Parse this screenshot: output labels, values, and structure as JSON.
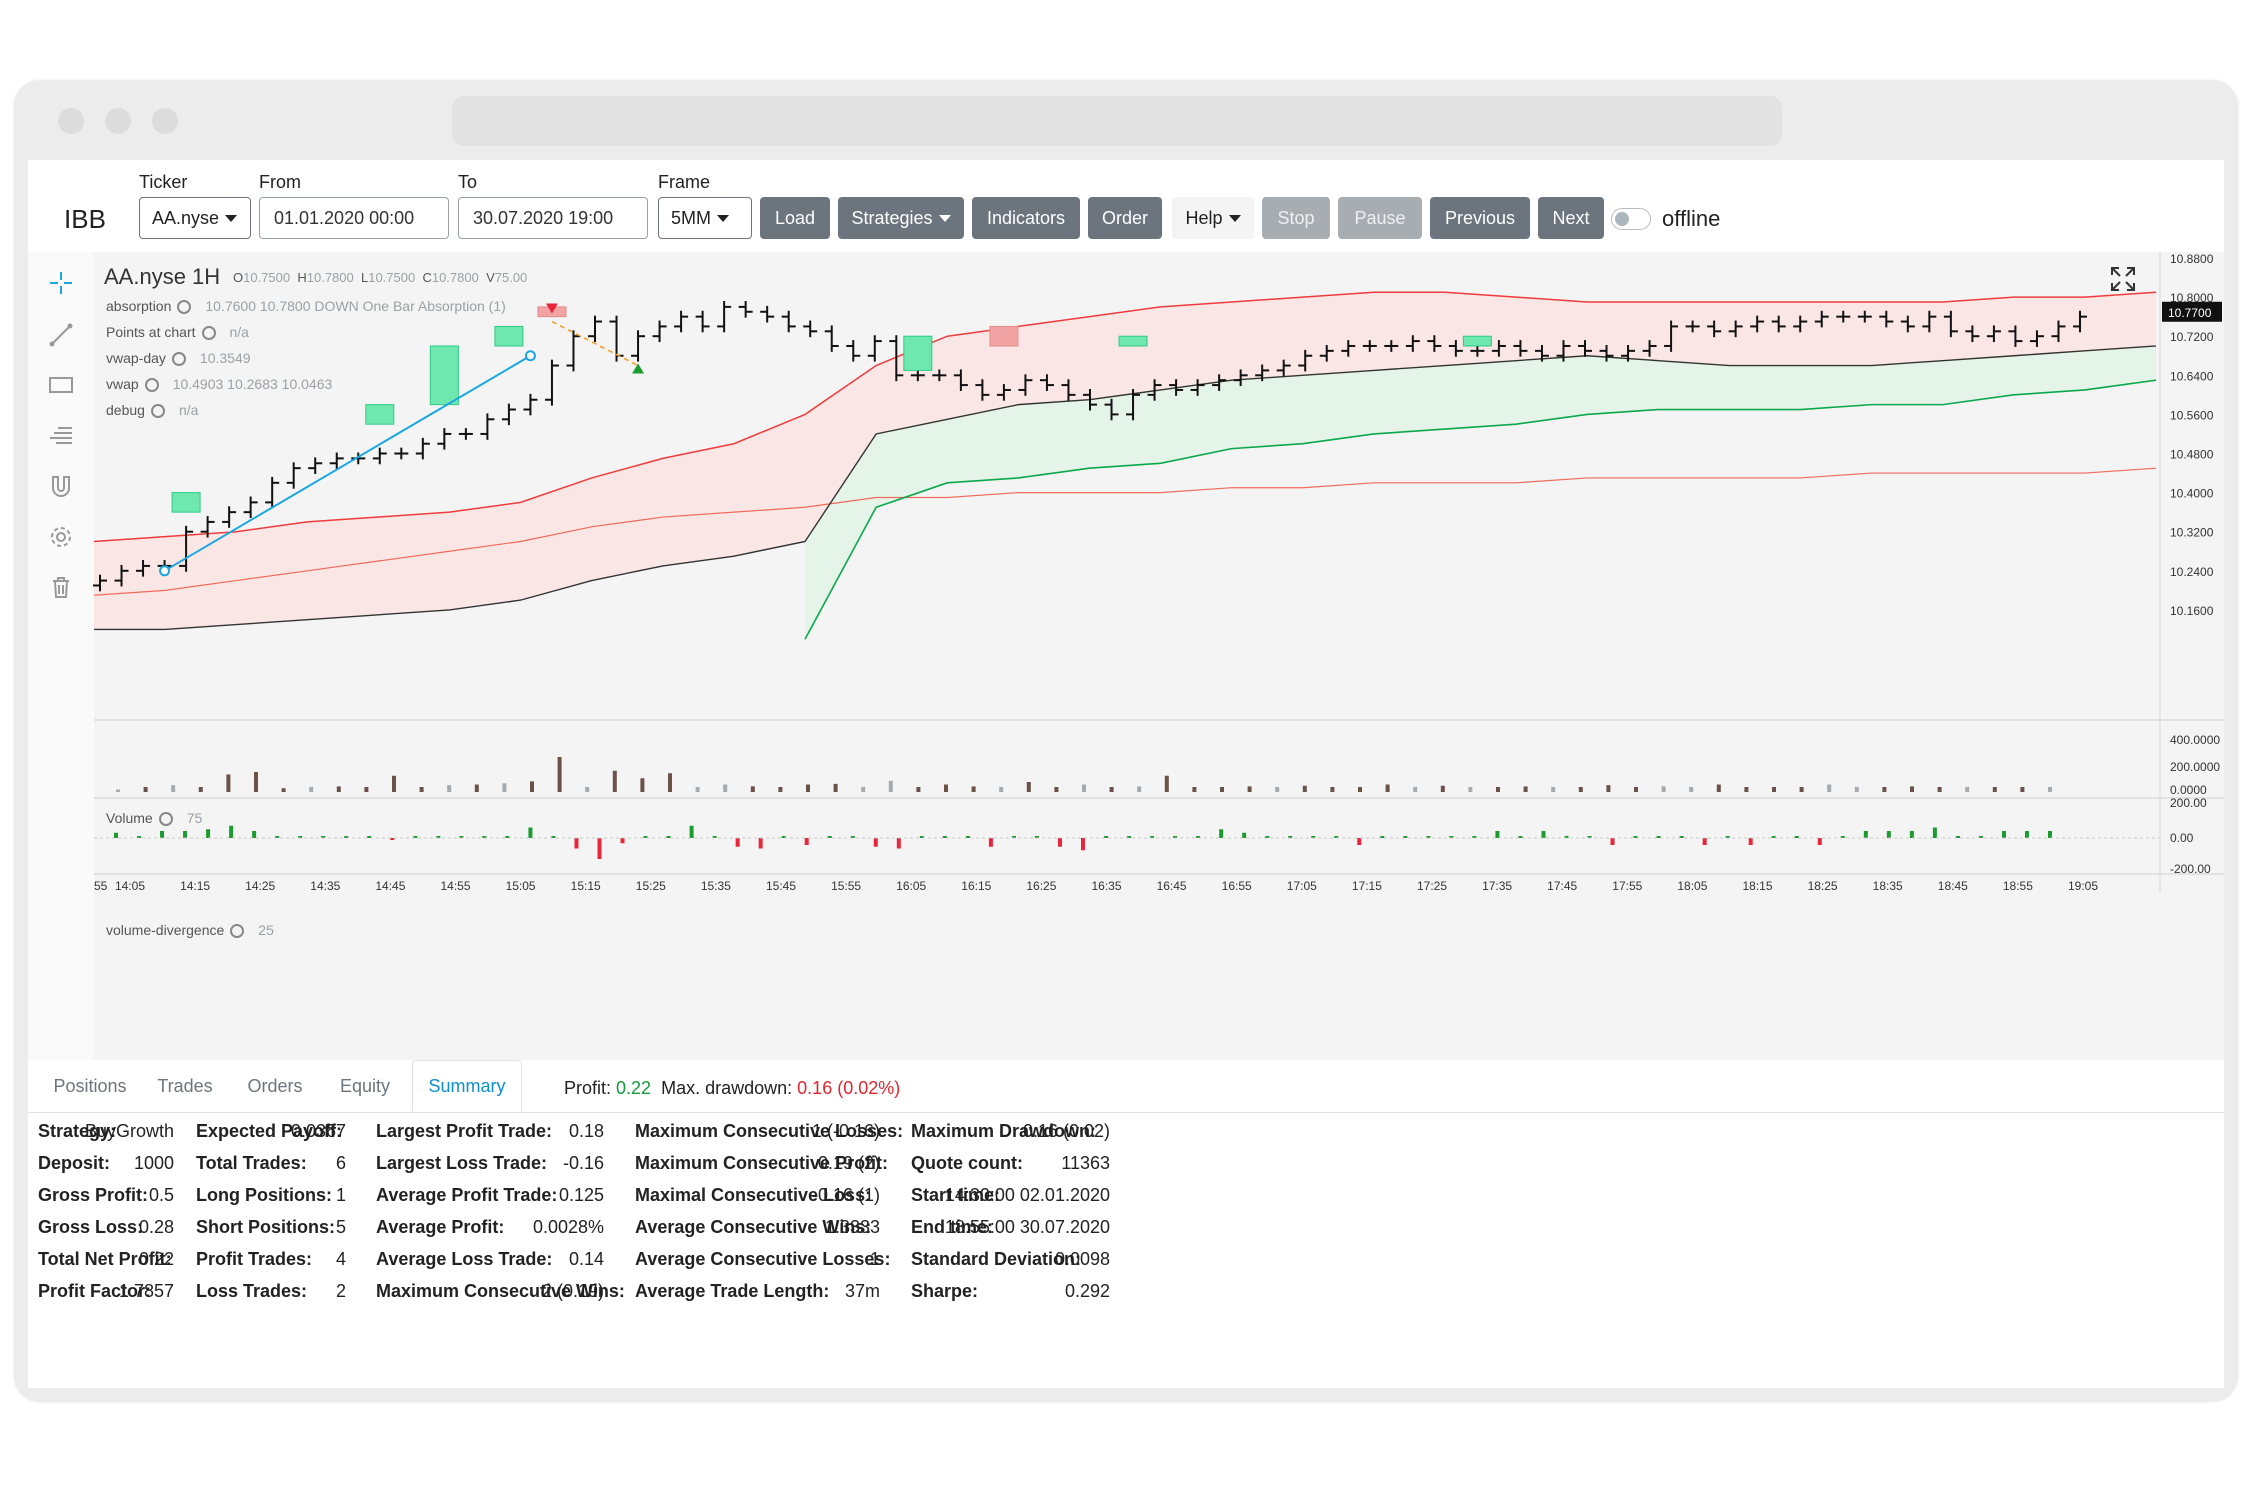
{
  "toolbar": {
    "brand": "IBB",
    "ticker_label": "Ticker",
    "ticker_value": "AA.nyse",
    "from_label": "From",
    "from_value": "01.01.2020 00:00",
    "to_label": "To",
    "to_value": "30.07.2020 19:00",
    "frame_label": "Frame",
    "frame_value": "5MM",
    "buttons": {
      "load": "Load",
      "strategies": "Strategies",
      "indicators": "Indicators",
      "order": "Order",
      "help": "Help",
      "stop": "Stop",
      "pause": "Pause",
      "previous": "Previous",
      "next": "Next"
    },
    "toggle_label": "offline"
  },
  "chart": {
    "title": "AA.nyse 1H",
    "ohlc": {
      "o_label": "O",
      "o": "10.7500",
      "h_label": "H",
      "h": "10.7800",
      "l_label": "L",
      "l": "10.7500",
      "c_label": "C",
      "c": "10.7800",
      "v_label": "V",
      "v": "75.00"
    },
    "indicators": [
      {
        "name": "absorption",
        "values": "10.7600   10.7800   DOWN   One Bar Absorption (1)"
      },
      {
        "name": "Points at chart",
        "values": "n/a"
      },
      {
        "name": "vwap-day",
        "values": "10.3549"
      },
      {
        "name": "vwap",
        "values": "10.4903   10.2683   10.0463"
      },
      {
        "name": "debug",
        "values": "n/a"
      }
    ],
    "price_ticks": [
      "10.8800",
      "10.8000",
      "10.7200",
      "10.6400",
      "10.5600",
      "10.4800",
      "10.4000",
      "10.3200",
      "10.2400",
      "10.1600"
    ],
    "last_price": "10.7700",
    "volume_pane": {
      "name": "Volume",
      "value": "75",
      "ticks": [
        "400.0000",
        "200.0000",
        "0.0000"
      ]
    },
    "divergence_pane": {
      "name": "volume-divergence",
      "value": "25",
      "ticks": [
        "200.00",
        "0.00",
        "-200.00"
      ]
    },
    "time_ticks": [
      "55",
      "14:05",
      "14:15",
      "14:25",
      "14:35",
      "14:45",
      "14:55",
      "15:05",
      "15:15",
      "15:25",
      "15:35",
      "15:45",
      "15:55",
      "16:05",
      "16:15",
      "16:25",
      "16:35",
      "16:45",
      "16:55",
      "17:05",
      "17:15",
      "17:25",
      "17:35",
      "17:45",
      "17:55",
      "18:05",
      "18:15",
      "18:25",
      "18:35",
      "18:45",
      "18:55",
      "19:05"
    ],
    "colors": {
      "upper_band": "#ef3b3b",
      "mid_band": "#ef6b5b",
      "lower_band": "#0aa84a",
      "vwap_line": "#333333",
      "trendline": "#1aa7e0",
      "volume": "#6b5249",
      "volume_light": "#a7aaad",
      "div_up": "#1a9c2e",
      "div_down": "#e8263a",
      "buy_box": "#6fe8b0",
      "sell_box": "#f2a3a3"
    }
  },
  "tabs": [
    {
      "label": "Positions"
    },
    {
      "label": "Trades"
    },
    {
      "label": "Orders"
    },
    {
      "label": "Equity"
    },
    {
      "label": "Summary",
      "active": true
    }
  ],
  "summary_bar": {
    "profit_label": "Profit:",
    "profit": "0.22",
    "drawdown_label": "Max. drawdown:",
    "drawdown": "0.16 (0.02%)"
  },
  "stats": [
    [
      {
        "k": "Strategy:",
        "v": "BuyGrowth"
      },
      {
        "k": "Deposit:",
        "v": "1000"
      },
      {
        "k": "Gross Profit:",
        "v": "0.5"
      },
      {
        "k": "Gross Loss:",
        "v": "0.28"
      },
      {
        "k": "Total Net Profit:",
        "v": "0.22"
      },
      {
        "k": "Profit Factor:",
        "v": "1.7857"
      }
    ],
    [
      {
        "k": "Expected Payoff:",
        "v": "0.0367"
      },
      {
        "k": "Total Trades:",
        "v": "6"
      },
      {
        "k": "Long Positions:",
        "v": "1"
      },
      {
        "k": "Short Positions:",
        "v": "5"
      },
      {
        "k": "Profit Trades:",
        "v": "4"
      },
      {
        "k": "Loss Trades:",
        "v": "2"
      }
    ],
    [
      {
        "k": "Largest Profit Trade:",
        "v": "0.18"
      },
      {
        "k": "Largest Loss Trade:",
        "v": "-0.16"
      },
      {
        "k": "Average Profit Trade:",
        "v": "0.125"
      },
      {
        "k": "Average Profit:",
        "v": "0.0028%"
      },
      {
        "k": "Average Loss Trade:",
        "v": "0.14"
      },
      {
        "k": "Maximum Consecutive Wins:",
        "v": "2 (0.19)"
      }
    ],
    [
      {
        "k": "Maximum Consecutive Losses:",
        "v": "1 (-0.16)"
      },
      {
        "k": "Maximum Consecutive Profit:",
        "v": "0.19 (2)"
      },
      {
        "k": "Maximal Consecutive Loss:",
        "v": "-0.16 (1)"
      },
      {
        "k": "Average Consecutive Wins:",
        "v": "1.3333"
      },
      {
        "k": "Average Consecutive Losses:",
        "v": "1"
      },
      {
        "k": "Average Trade Length:",
        "v": "37m"
      }
    ],
    [
      {
        "k": "Maximum Drawdown:",
        "v": "0.16 (0.02)"
      },
      {
        "k": "Quote count:",
        "v": "11363"
      },
      {
        "k": "Start time:",
        "v": "14:30:00 02.01.2020"
      },
      {
        "k": "End time:",
        "v": "18:55:00 30.07.2020"
      },
      {
        "k": "Standard Deviation:",
        "v": "0.0098"
      },
      {
        "k": "Sharpe:",
        "v": "0.292"
      }
    ]
  ]
}
